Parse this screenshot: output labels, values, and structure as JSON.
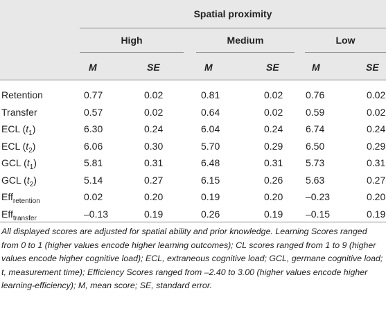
{
  "table": {
    "header": {
      "title": "Spatial proximity",
      "groups": [
        "High",
        "Medium",
        "Low"
      ],
      "stats": [
        "M",
        "SE",
        "M",
        "SE",
        "M",
        "SE"
      ]
    },
    "rows": [
      {
        "label": {
          "main": "Retention"
        },
        "values": [
          "0.77",
          "0.02",
          "0.81",
          "0.02",
          "0.76",
          "0.02"
        ]
      },
      {
        "label": {
          "main": "Transfer"
        },
        "values": [
          "0.57",
          "0.02",
          "0.64",
          "0.02",
          "0.59",
          "0.02"
        ]
      },
      {
        "label": {
          "main": "ECL (",
          "italic": "t",
          "sub": "1",
          "tail": ")"
        },
        "values": [
          "6.30",
          "0.24",
          "6.04",
          "0.24",
          "6.74",
          "0.24"
        ]
      },
      {
        "label": {
          "main": "ECL (",
          "italic": "t",
          "sub": "2",
          "tail": ")"
        },
        "values": [
          "6.06",
          "0.30",
          "5.70",
          "0.29",
          "6.50",
          "0.29"
        ]
      },
      {
        "label": {
          "main": "GCL (",
          "italic": "t",
          "sub": "1",
          "tail": ")"
        },
        "values": [
          "5.81",
          "0.31",
          "6.48",
          "0.31",
          "5.73",
          "0.31"
        ]
      },
      {
        "label": {
          "main": "GCL (",
          "italic": "t",
          "sub": "2",
          "tail": ")"
        },
        "values": [
          "5.14",
          "0.27",
          "6.15",
          "0.26",
          "5.63",
          "0.27"
        ]
      },
      {
        "label": {
          "main": "Eff",
          "sub": "retention"
        },
        "values": [
          "0.02",
          "0.20",
          "0.19",
          "0.20",
          "–0.23",
          "0.20"
        ]
      },
      {
        "label": {
          "main": "Eff",
          "sub": "transfer"
        },
        "values": [
          "–0.13",
          "0.19",
          "0.26",
          "0.19",
          "–0.15",
          "0.19"
        ]
      }
    ],
    "footnote": "All displayed scores are adjusted for spatial ability and prior knowledge. Learning Scores ranged from 0 to 1 (higher values encode higher learning outcomes); CL scores ranged from 1 to 9 (higher values encode higher cognitive load); ECL, extraneous cognitive load; GCL, germane cognitive load; t, measurement time); Efficiency Scores ranged from –2.40 to 3.00 (higher values encode higher learning-efficiency); M, mean score; SE, standard error."
  }
}
